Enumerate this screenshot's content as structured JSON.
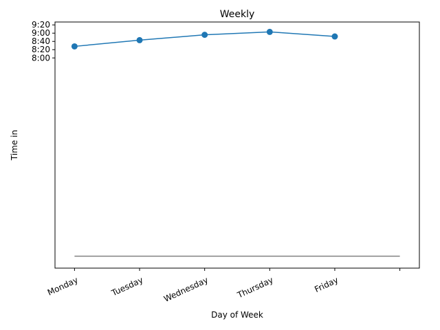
{
  "chart_data": {
    "type": "line",
    "title": "Weekly",
    "xlabel": "Day of Week",
    "ylabel": "Time in",
    "categories": [
      "Monday",
      "Tuesday",
      "Wednesday",
      "Thursday",
      "Friday"
    ],
    "series": [
      {
        "values": [
          "8:28",
          "8:43",
          "8:56",
          "9:03",
          "8:52"
        ],
        "color": "#1f77b4",
        "marker": "circle"
      }
    ],
    "reference_line": {
      "value": "0:00",
      "color": "#808080"
    },
    "y_ticks": [
      "8:00",
      "8:20",
      "8:40",
      "9:00",
      "9:20"
    ],
    "ylim": [
      "-0:29",
      "9:27"
    ],
    "grid": false,
    "legend": "none"
  }
}
